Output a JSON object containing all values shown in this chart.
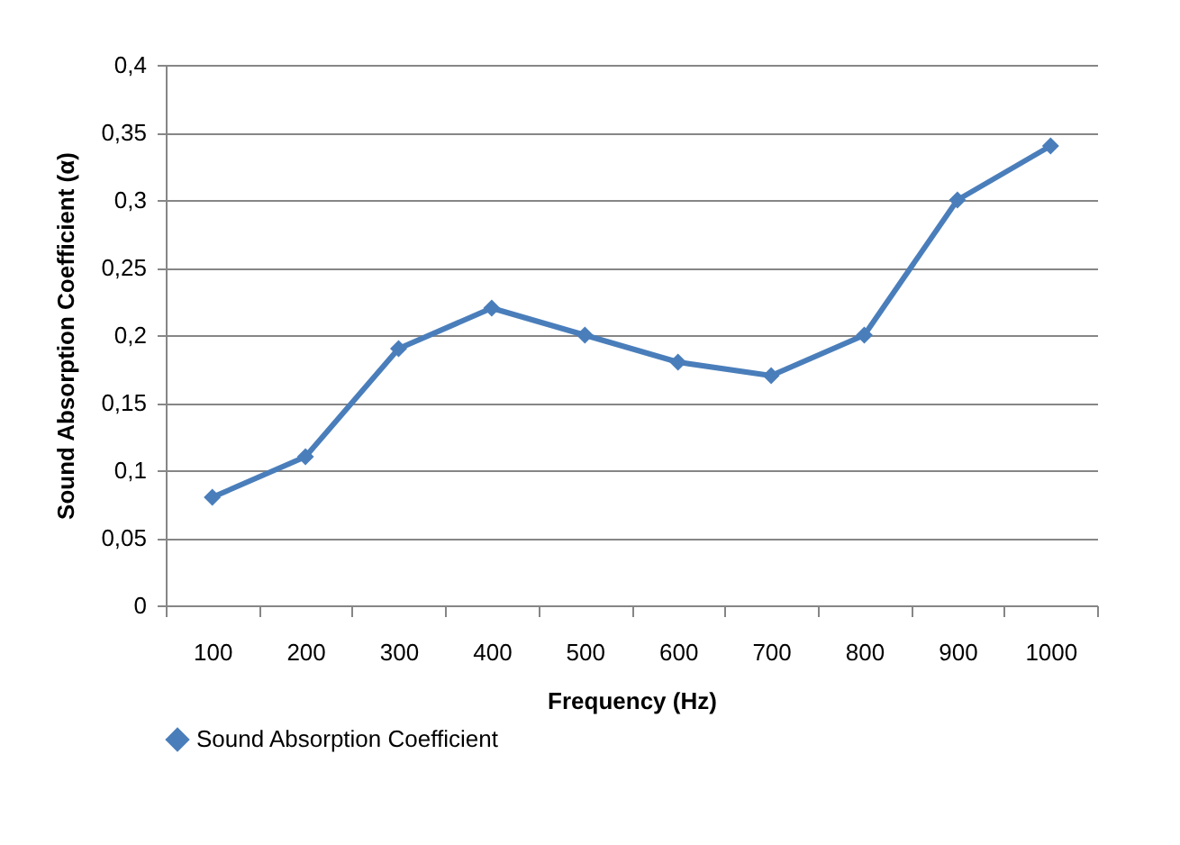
{
  "chart_data": {
    "type": "line",
    "xlabel": "Frequency (Hz)",
    "ylabel": "Sound Absorption Coefficient (α)",
    "categories": [
      "100",
      "200",
      "300",
      "400",
      "500",
      "600",
      "700",
      "800",
      "900",
      "1000"
    ],
    "series": [
      {
        "name": "Sound Absorption Coefficient",
        "color": "#4a7ebb",
        "values": [
          0.08,
          0.11,
          0.19,
          0.22,
          0.2,
          0.18,
          0.17,
          0.2,
          0.3,
          0.34
        ]
      }
    ],
    "ylim": [
      0,
      0.4
    ],
    "yticks": [
      {
        "value": 0,
        "label": "0"
      },
      {
        "value": 0.05,
        "label": "0,05"
      },
      {
        "value": 0.1,
        "label": "0,1"
      },
      {
        "value": 0.15,
        "label": "0,15"
      },
      {
        "value": 0.2,
        "label": "0,2"
      },
      {
        "value": 0.25,
        "label": "0,25"
      },
      {
        "value": 0.3,
        "label": "0,3"
      },
      {
        "value": 0.35,
        "label": "0,35"
      },
      {
        "value": 0.4,
        "label": "0,4"
      }
    ],
    "grid": "y",
    "legend": "bottom left",
    "marker": "diamond",
    "line_style": "solid"
  }
}
